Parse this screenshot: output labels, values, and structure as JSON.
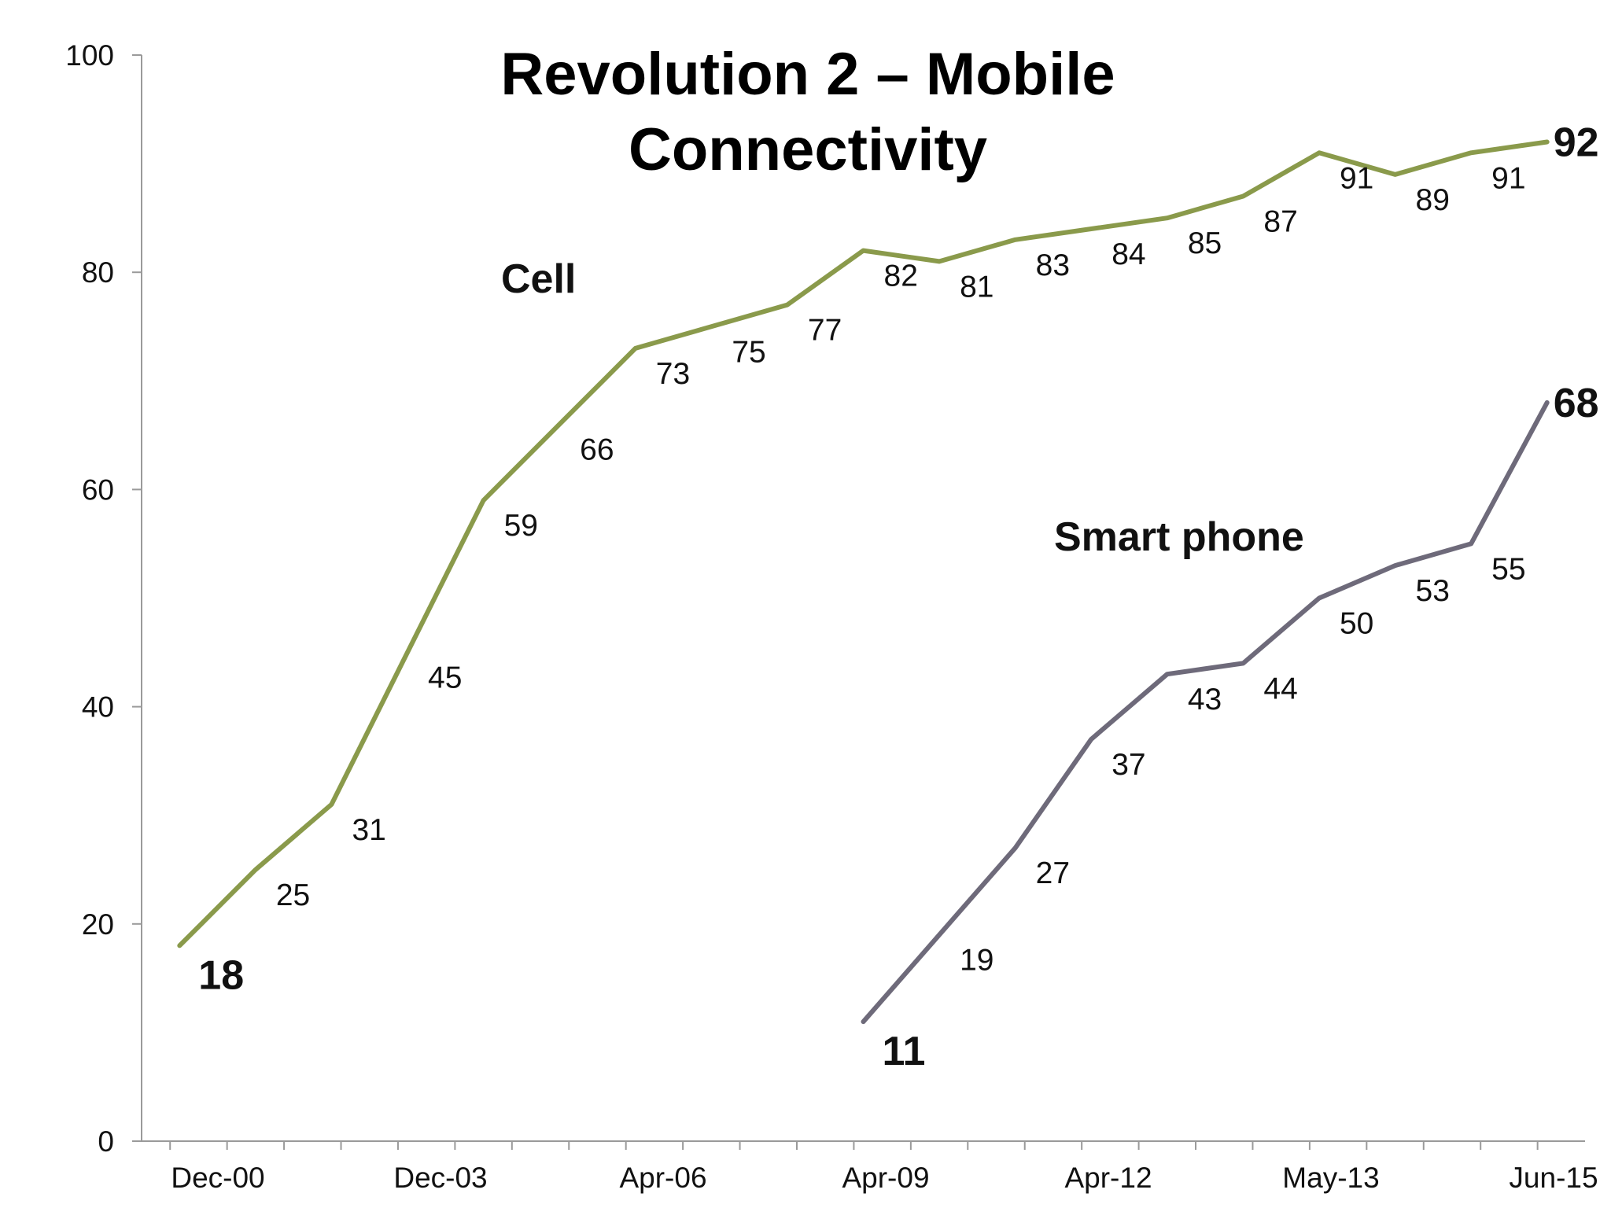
{
  "chart_data": {
    "type": "line",
    "title_lines": [
      "Revolution 2 – Mobile",
      "Connectivity"
    ],
    "xlabel": "",
    "ylabel": "",
    "ylim": [
      0,
      100
    ],
    "y_ticks": [
      "0",
      "20",
      "40",
      "60",
      "80",
      "100"
    ],
    "x_tick_labels": [
      "Dec-00",
      "Dec-03",
      "Apr-06",
      "Apr-09",
      "Apr-12",
      "May-13",
      "Jun-15"
    ],
    "grid": false,
    "legend": "inline labels",
    "series": [
      {
        "name": "Cell",
        "color": "#8A9A4B",
        "start_index": 0,
        "values": [
          18,
          25,
          31,
          45,
          59,
          66,
          73,
          75,
          77,
          82,
          81,
          83,
          84,
          85,
          87,
          91,
          89,
          91,
          92
        ],
        "labels": [
          "18",
          "25",
          "31",
          "45",
          "59",
          "66",
          "73",
          "75",
          "77",
          "82",
          "81",
          "83",
          "84",
          "85",
          "87",
          "91",
          "89",
          "91",
          "92"
        ]
      },
      {
        "name": "Smart phone",
        "color": "#6E6A7A",
        "start_index": 9,
        "values": [
          11,
          19,
          27,
          37,
          43,
          44,
          50,
          53,
          55,
          68
        ],
        "labels": [
          "11",
          "19",
          "27",
          "37",
          "43",
          "44",
          "50",
          "53",
          "55",
          "68"
        ]
      }
    ]
  }
}
